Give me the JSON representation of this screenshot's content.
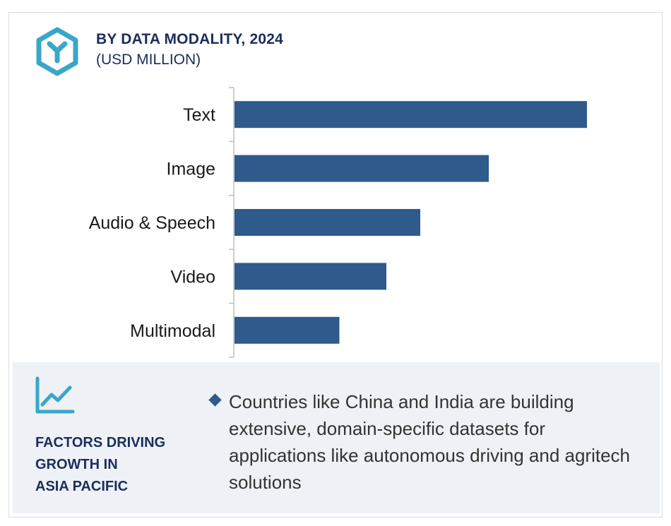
{
  "header": {
    "title": "BY DATA MODALITY, 2024",
    "subtitle": "(USD MILLION)",
    "logo_icon": "hexagon-y-logo-icon"
  },
  "chart_data": {
    "type": "bar",
    "orientation": "horizontal",
    "title": "BY DATA MODALITY, 2024",
    "subtitle": "(USD MILLION)",
    "categories": [
      "Text",
      "Image",
      "Audio & Speech",
      "Video",
      "Multimodal"
    ],
    "values": [
      100,
      72.2,
      52.8,
      43.2,
      29.9
    ],
    "bar_color": "#2e5a8c",
    "xlim": [
      0,
      100
    ],
    "grid": false,
    "value_labels": false,
    "legend": "none"
  },
  "factors": {
    "icon": "trend-line-chart-icon",
    "heading_lines": [
      "FACTORS DRIVING",
      "GROWTH IN",
      "ASIA PACIFIC"
    ],
    "bullet": "Countries like China and India are building extensive, domain-specific datasets for applications like autonomous driving and agritech solutions"
  },
  "colors": {
    "title": "#1b2d5b",
    "bar": "#2e5a8c",
    "accent": "#3aa6c9",
    "panel_bg": "#eef1f6"
  }
}
